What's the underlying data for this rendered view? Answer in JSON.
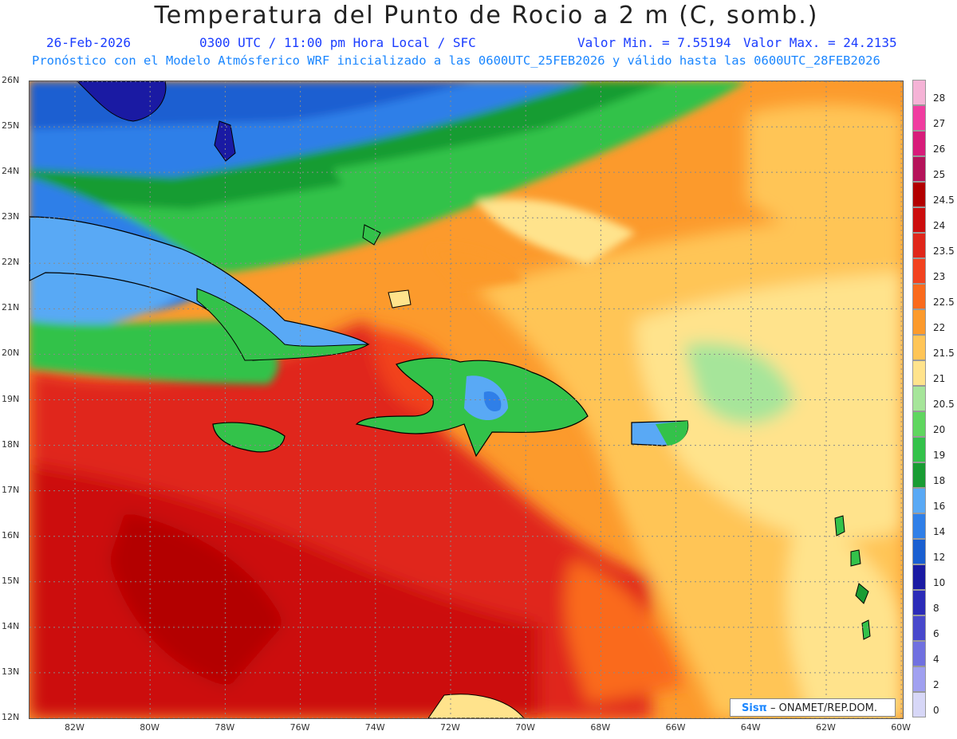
{
  "header": {
    "title": "Temperatura del Punto de Rocio a 2 m (C, somb.)",
    "date": "26-Feb-2026",
    "time": "0300 UTC / 11:00 pm Hora Local / SFC",
    "min_label": "Valor Min. = 7.55194",
    "max_label": "Valor Max. = 24.2135",
    "subtitle": "Pronóstico con el Modelo Atmósferico WRF inicializado a las 0600UTC_25FEB2026 y válido hasta las  0600UTC_28FEB2026"
  },
  "axes": {
    "lat_labels": [
      "26N",
      "25N",
      "24N",
      "23N",
      "22N",
      "21N",
      "20N",
      "19N",
      "18N",
      "17N",
      "16N",
      "15N",
      "14N",
      "13N",
      "12N"
    ],
    "lon_labels": [
      "82W",
      "80W",
      "78W",
      "76W",
      "74W",
      "72W",
      "70W",
      "68W",
      "66W",
      "64W",
      "62W",
      "60W"
    ]
  },
  "legend": {
    "labels": [
      "28",
      "27",
      "26",
      "25",
      "24.5",
      "24",
      "23.5",
      "23",
      "22.5",
      "22",
      "21.5",
      "21",
      "20.5",
      "20",
      "19",
      "18",
      "16",
      "14",
      "12",
      "10",
      "8",
      "6",
      "4",
      "2",
      "0"
    ],
    "colors": [
      "#f5b3d6",
      "#f03ca0",
      "#d81b7a",
      "#b5135a",
      "#b30000",
      "#cc0d0d",
      "#e0261a",
      "#f2421f",
      "#fa6a1c",
      "#fc9a2c",
      "#ffc557",
      "#ffe38c",
      "#a6e59a",
      "#5fd65f",
      "#33c24a",
      "#199c33",
      "#59a9f5",
      "#2f7fe8",
      "#1a5fd1",
      "#1a1aa3",
      "#2b2bb8",
      "#4848cc",
      "#7070e0",
      "#a0a0f0",
      "#d7d7f7"
    ]
  },
  "credit": {
    "logo": "Sisπ",
    "text": "– ONAMET/REP.DOM."
  }
}
